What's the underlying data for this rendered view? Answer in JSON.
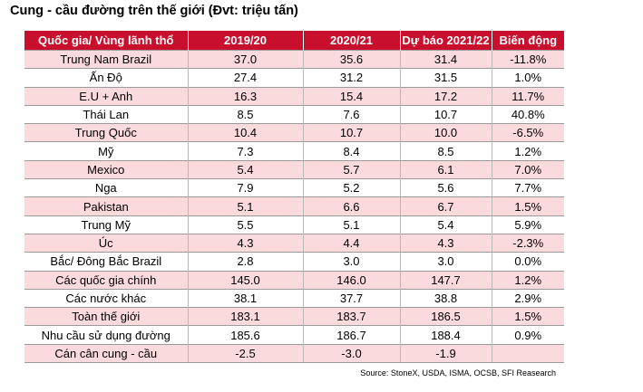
{
  "title": "Cung - cầu đường trên thế giới (Đvt: triệu tấn)",
  "table": {
    "headers": [
      "Quốc gia/ Vùng lãnh thổ",
      "2019/20",
      "2020/21",
      "Dự báo 2021/22",
      "Biến động"
    ],
    "rows": [
      [
        "Trung Nam Brazil",
        "37.0",
        "35.6",
        "31.4",
        "-11.8%"
      ],
      [
        "Ấn Độ",
        "27.4",
        "31.2",
        "31.5",
        "1.0%"
      ],
      [
        "E.U + Anh",
        "16.3",
        "15.4",
        "17.2",
        "11.7%"
      ],
      [
        "Thái Lan",
        "8.5",
        "7.6",
        "10.7",
        "40.8%"
      ],
      [
        "Trung Quốc",
        "10.4",
        "10.7",
        "10.0",
        "-6.5%"
      ],
      [
        "Mỹ",
        "7.3",
        "8.4",
        "8.5",
        "1.2%"
      ],
      [
        "Mexico",
        "5.4",
        "5.7",
        "6.1",
        "7.0%"
      ],
      [
        "Nga",
        "7.9",
        "5.2",
        "5.6",
        "7.7%"
      ],
      [
        "Pakistan",
        "5.1",
        "6.6",
        "6.7",
        "1.5%"
      ],
      [
        "Trung Mỹ",
        "5.5",
        "5.1",
        "5.4",
        "5.9%"
      ],
      [
        "Úc",
        "4.3",
        "4.4",
        "4.3",
        "-2.3%"
      ],
      [
        "Bắc/ Đông Bắc Brazil",
        "2.8",
        "3.0",
        "3.0",
        "0.0%"
      ],
      [
        "Các quốc gia chính",
        "145.0",
        "146.0",
        "147.7",
        "1.2%"
      ],
      [
        "Các nước khác",
        "38.1",
        "37.7",
        "38.8",
        "2.9%"
      ],
      [
        "Toàn thế giới",
        "183.1",
        "183.7",
        "186.5",
        "1.5%"
      ],
      [
        "Nhu cầu sử dụng đường",
        "185.6",
        "186.7",
        "188.4",
        "0.9%"
      ],
      [
        "Cán cân cung - cầu",
        "-2.5",
        "-3.0",
        "-1.9",
        ""
      ]
    ]
  },
  "source": "Source: StoneX, USDA, ISMA, OCSB, SFI Reasearch",
  "colors": {
    "header_bg": "#c8102e",
    "header_text": "#ffffff",
    "stripe": "#fadadd"
  }
}
